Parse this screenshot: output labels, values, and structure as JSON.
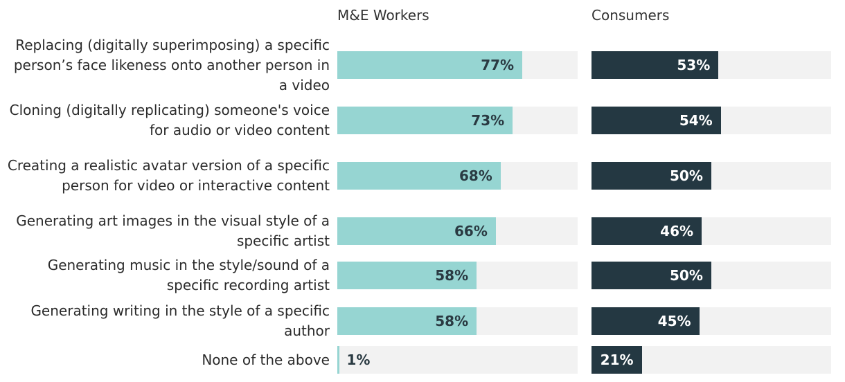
{
  "chart_data": {
    "type": "bar",
    "orientation": "horizontal",
    "layout": "two side-by-side panels",
    "categories": [
      "Replacing (digitally superimposing) a specific person’s face likeness onto another person in a video",
      "Cloning (digitally replicating) someone's voice for audio or video content",
      "Creating a realistic avatar version of a specific person for video or interactive content",
      "Generating art images in the visual style of a specific artist",
      "Generating music in the style/sound of a specific recording artist",
      "Generating writing in the style of a specific author",
      "None of the above"
    ],
    "series": [
      {
        "name": "M&E Workers",
        "values": [
          77,
          73,
          68,
          66,
          58,
          58,
          1
        ],
        "value_labels": [
          "77%",
          "73%",
          "68%",
          "66%",
          "58%",
          "58%",
          "1%"
        ],
        "color": "#96d5d2",
        "label_color": "#2a3a42"
      },
      {
        "name": "Consumers",
        "values": [
          53,
          54,
          50,
          46,
          50,
          45,
          21
        ],
        "value_labels": [
          "53%",
          "54%",
          "50%",
          "46%",
          "50%",
          "45%",
          "21%"
        ],
        "color": "#243842",
        "label_color": "#ffffff"
      }
    ],
    "xlim": [
      0,
      100
    ],
    "unit": "%",
    "track_color": "#f2f2f2",
    "grid": false,
    "legend": "panel titles at top"
  }
}
